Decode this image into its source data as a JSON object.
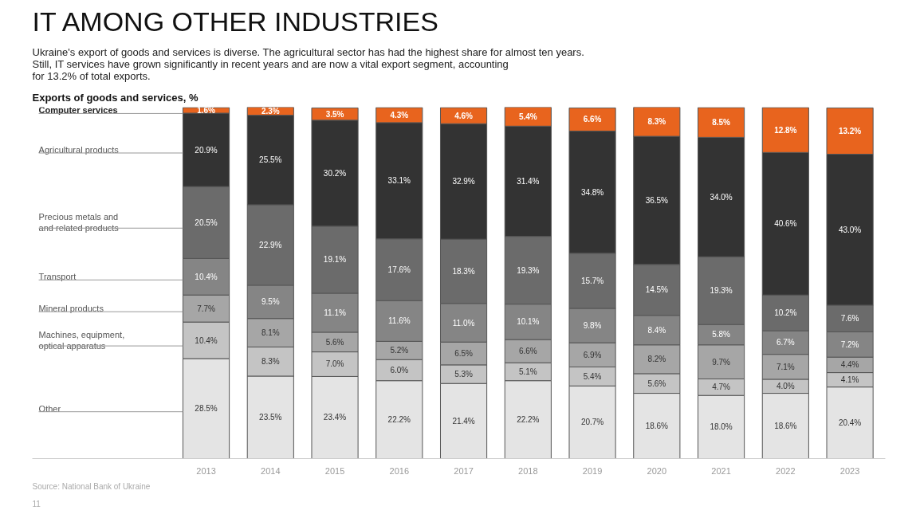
{
  "chart_data": {
    "type": "bar",
    "stacked": true,
    "title": "IT AMONG OTHER INDUSTRIES",
    "subtitle": "Ukraine's export of goods and services is diverse. The agricultural sector has had the highest share for almost ten years.\nStill, IT services have grown significantly in recent years and are now a vital export segment, accounting\nfor 13.2% of total exports.",
    "annotations": [
      "Exports of goods and services, %",
      "Source: National Bank of Ukraine",
      "11"
    ],
    "categories": [
      "2013",
      "2014",
      "2015",
      "2016",
      "2017",
      "2018",
      "2019",
      "2020",
      "2021",
      "2022",
      "2023"
    ],
    "ylim": [
      0,
      100.1
    ],
    "grid": false,
    "series": [
      {
        "name": "Other",
        "color": "#e4e4e4",
        "values": [
          28.5,
          23.5,
          23.4,
          22.2,
          21.4,
          22.2,
          20.7,
          18.6,
          18.0,
          18.6,
          20.4
        ],
        "value_labels": [
          "28.5%",
          "23.5%",
          "23.4%",
          "22.2%",
          "21.4%",
          "22.2%",
          "20.7%",
          "18.6%",
          "18.0%",
          "18.6%",
          "20.4%"
        ]
      },
      {
        "name": "Machines, equipment,\noptical apparatus",
        "color": "#c4c4c4",
        "values": [
          10.4,
          8.3,
          7.0,
          6.0,
          5.3,
          5.1,
          5.4,
          5.6,
          4.7,
          4.0,
          4.1
        ],
        "value_labels": [
          "10.4%",
          "8.3%",
          "7.0%",
          "6.0%",
          "5.3%",
          "5.1%",
          "5.4%",
          "5.6%",
          "4.7%",
          "4.0%",
          "4.1%"
        ]
      },
      {
        "name": "Mineral products",
        "color": "#a6a6a6",
        "values": [
          7.7,
          8.1,
          5.6,
          5.2,
          6.5,
          6.6,
          6.9,
          8.2,
          9.7,
          7.1,
          4.4
        ],
        "value_labels": [
          "7.7%",
          "8.1%",
          "5.6%",
          "5.2%",
          "6.5%",
          "6.6%",
          "6.9%",
          "8.2%",
          "9.7%",
          "7.1%",
          "4.4%"
        ]
      },
      {
        "name": "Transport",
        "color": "#858585",
        "values": [
          10.4,
          9.5,
          11.1,
          11.6,
          11.0,
          10.1,
          9.8,
          8.4,
          5.8,
          6.7,
          7.2
        ],
        "value_labels": [
          "10.4%",
          "9.5%",
          "11.1%",
          "11.6%",
          "11.0%",
          "10.1%",
          "9.8%",
          "8.4%",
          "5.8%",
          "6.7%",
          "7.2%"
        ]
      },
      {
        "name": "Precious metals and\nand related products",
        "color": "#6b6b6b",
        "values": [
          20.5,
          22.9,
          19.1,
          17.6,
          18.3,
          19.3,
          15.7,
          14.5,
          19.3,
          10.2,
          7.6
        ],
        "value_labels": [
          "20.5%",
          "22.9%",
          "19.1%",
          "17.6%",
          "18.3%",
          "19.3%",
          "15.7%",
          "14.5%",
          "19.3%",
          "10.2%",
          "7.6%"
        ]
      },
      {
        "name": "Agricultural products",
        "color": "#333333",
        "values": [
          20.9,
          25.5,
          30.2,
          33.1,
          32.9,
          31.4,
          34.8,
          36.5,
          34.0,
          40.6,
          43.0
        ],
        "value_labels": [
          "20.9%",
          "25.5%",
          "30.2%",
          "33.1%",
          "32.9%",
          "31.4%",
          "34.8%",
          "36.5%",
          "34.0%",
          "40.6%",
          "43.0%"
        ]
      },
      {
        "name": "Computer services",
        "color": "#e8641e",
        "values": [
          1.6,
          2.3,
          3.5,
          4.3,
          4.6,
          5.4,
          6.6,
          8.3,
          8.5,
          12.8,
          13.2
        ],
        "value_labels": [
          "1.6%",
          "2.3%",
          "3.5%",
          "4.3%",
          "4.6%",
          "5.4%",
          "6.6%",
          "8.3%",
          "8.5%",
          "12.8%",
          "13.2%"
        ]
      }
    ]
  }
}
